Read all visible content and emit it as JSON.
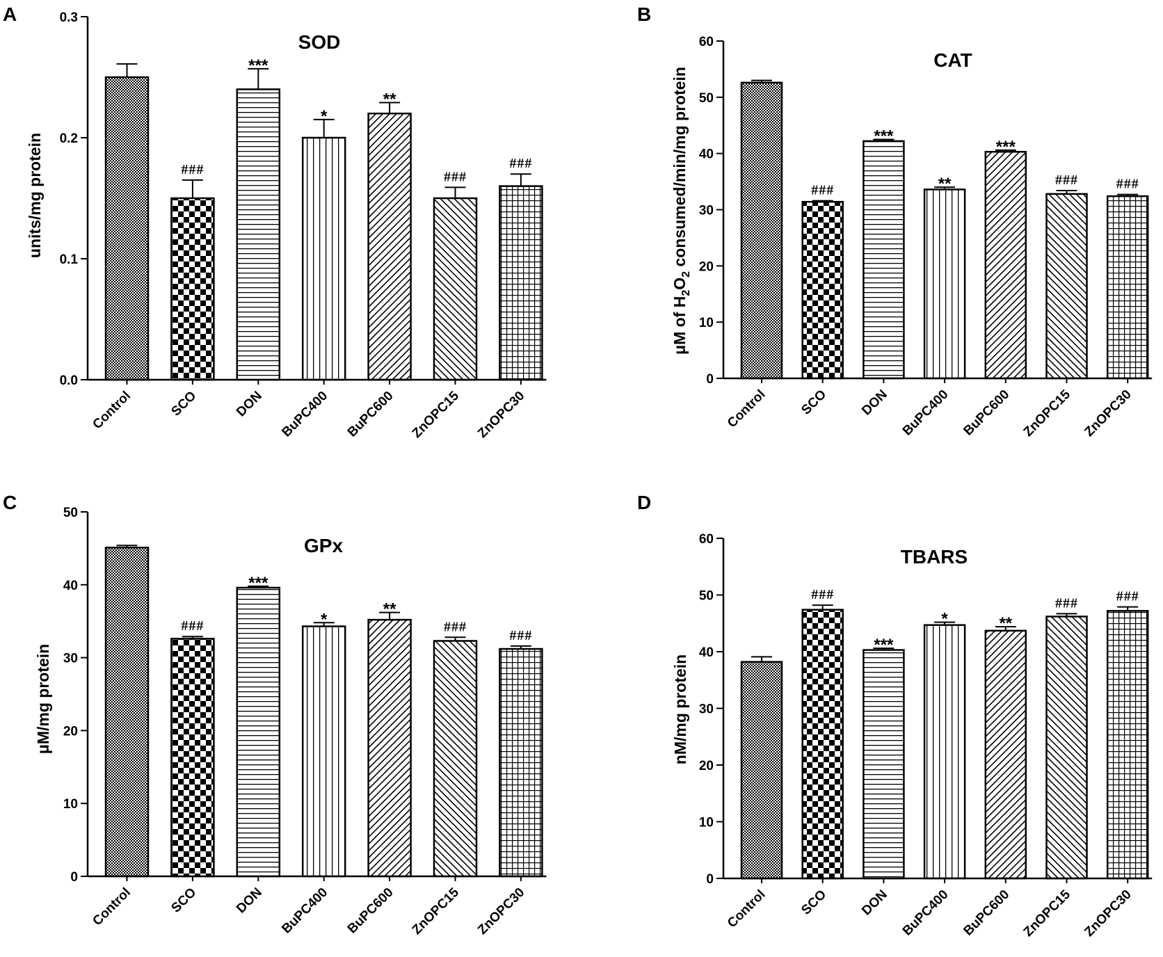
{
  "figure": {
    "categories": [
      "Control",
      "SCO",
      "DON",
      "BuPC400",
      "BuPC600",
      "ZnOPC15",
      "ZnOPC30"
    ]
  },
  "chart_data": [
    {
      "panel": "A",
      "type": "bar",
      "title": "SOD",
      "xlabel": "",
      "ylabel": "units/mg protein",
      "ylim": [
        0,
        0.3
      ],
      "yticks": [
        "0.0",
        "0.1",
        "0.2",
        "0.3"
      ],
      "categories": [
        "Control",
        "SCO",
        "DON",
        "BuPC400",
        "BuPC600",
        "ZnOPC15",
        "ZnOPC30"
      ],
      "values": [
        0.25,
        0.15,
        0.24,
        0.2,
        0.22,
        0.15,
        0.16
      ],
      "errors": [
        0.011,
        0.015,
        0.017,
        0.015,
        0.009,
        0.009,
        0.01
      ],
      "annotations": [
        "",
        "###",
        "***",
        "*",
        "**",
        "###",
        "###"
      ]
    },
    {
      "panel": "B",
      "type": "bar",
      "title": "CAT",
      "xlabel": "",
      "ylabel": "μM of H2O2 consumed/min/mg protein",
      "ylim": [
        0,
        60
      ],
      "yticks": [
        "0",
        "10",
        "20",
        "30",
        "40",
        "50",
        "60"
      ],
      "categories": [
        "Control",
        "SCO",
        "DON",
        "BuPC400",
        "BuPC600",
        "ZnOPC15",
        "ZnOPC30"
      ],
      "values": [
        52.6,
        31.4,
        42.2,
        33.6,
        40.3,
        32.8,
        32.4
      ],
      "errors": [
        0.4,
        0.2,
        0.3,
        0.4,
        0.3,
        0.6,
        0.3
      ],
      "annotations": [
        "",
        "###",
        "***",
        "**",
        "***",
        "###",
        "###"
      ]
    },
    {
      "panel": "C",
      "type": "bar",
      "title": "GPx",
      "xlabel": "",
      "ylabel": "μM/mg protein",
      "ylim": [
        0,
        50
      ],
      "yticks": [
        "0",
        "10",
        "20",
        "30",
        "40",
        "50"
      ],
      "categories": [
        "Control",
        "SCO",
        "DON",
        "BuPC400",
        "BuPC600",
        "ZnOPC15",
        "ZnOPC30"
      ],
      "values": [
        45.1,
        32.6,
        39.6,
        34.3,
        35.2,
        32.3,
        31.2
      ],
      "errors": [
        0.3,
        0.3,
        0.2,
        0.5,
        1.0,
        0.5,
        0.4
      ],
      "annotations": [
        "",
        "###",
        "***",
        "*",
        "**",
        "###",
        "###"
      ]
    },
    {
      "panel": "D",
      "type": "bar",
      "title": "TBARS",
      "xlabel": "",
      "ylabel": "nM/mg protein",
      "ylim": [
        0,
        60
      ],
      "yticks": [
        "0",
        "10",
        "20",
        "30",
        "40",
        "50",
        "60"
      ],
      "categories": [
        "Control",
        "SCO",
        "DON",
        "BuPC400",
        "BuPC600",
        "ZnOPC15",
        "ZnOPC30"
      ],
      "values": [
        38.2,
        47.4,
        40.3,
        44.7,
        43.7,
        46.2,
        47.2
      ],
      "errors": [
        0.9,
        0.8,
        0.3,
        0.5,
        0.7,
        0.5,
        0.7
      ],
      "annotations": [
        "",
        "###",
        "***",
        "*",
        "**",
        "###",
        "###"
      ]
    }
  ]
}
